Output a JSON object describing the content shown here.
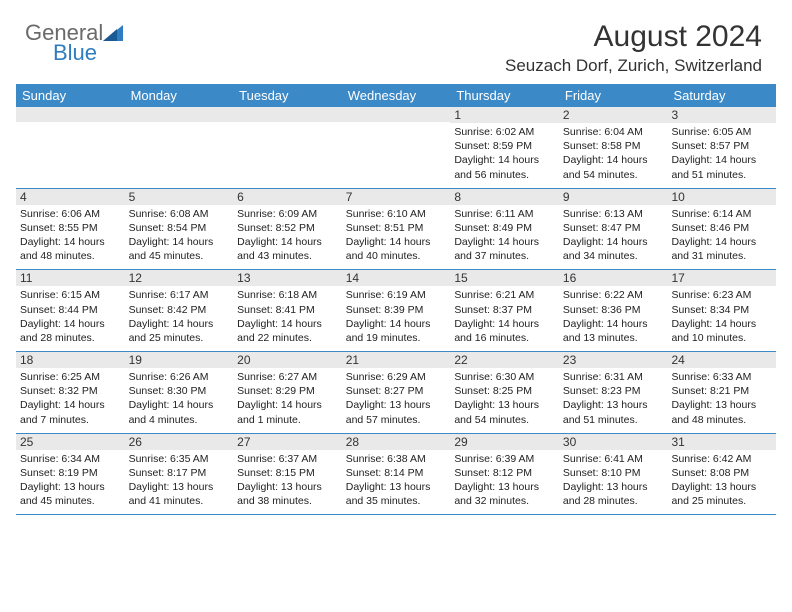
{
  "logo": {
    "word1": "General",
    "word2": "Blue"
  },
  "title": "August 2024",
  "location": "Seuzach Dorf, Zurich, Switzerland",
  "header_color": "#3b89c7",
  "grey_color": "#e9e9e9",
  "day_names": [
    "Sunday",
    "Monday",
    "Tuesday",
    "Wednesday",
    "Thursday",
    "Friday",
    "Saturday"
  ],
  "weeks": [
    [
      null,
      null,
      null,
      null,
      {
        "d": "1",
        "sr": "6:02 AM",
        "ss": "8:59 PM",
        "dl": "14 hours and 56 minutes."
      },
      {
        "d": "2",
        "sr": "6:04 AM",
        "ss": "8:58 PM",
        "dl": "14 hours and 54 minutes."
      },
      {
        "d": "3",
        "sr": "6:05 AM",
        "ss": "8:57 PM",
        "dl": "14 hours and 51 minutes."
      }
    ],
    [
      {
        "d": "4",
        "sr": "6:06 AM",
        "ss": "8:55 PM",
        "dl": "14 hours and 48 minutes."
      },
      {
        "d": "5",
        "sr": "6:08 AM",
        "ss": "8:54 PM",
        "dl": "14 hours and 45 minutes."
      },
      {
        "d": "6",
        "sr": "6:09 AM",
        "ss": "8:52 PM",
        "dl": "14 hours and 43 minutes."
      },
      {
        "d": "7",
        "sr": "6:10 AM",
        "ss": "8:51 PM",
        "dl": "14 hours and 40 minutes."
      },
      {
        "d": "8",
        "sr": "6:11 AM",
        "ss": "8:49 PM",
        "dl": "14 hours and 37 minutes."
      },
      {
        "d": "9",
        "sr": "6:13 AM",
        "ss": "8:47 PM",
        "dl": "14 hours and 34 minutes."
      },
      {
        "d": "10",
        "sr": "6:14 AM",
        "ss": "8:46 PM",
        "dl": "14 hours and 31 minutes."
      }
    ],
    [
      {
        "d": "11",
        "sr": "6:15 AM",
        "ss": "8:44 PM",
        "dl": "14 hours and 28 minutes."
      },
      {
        "d": "12",
        "sr": "6:17 AM",
        "ss": "8:42 PM",
        "dl": "14 hours and 25 minutes."
      },
      {
        "d": "13",
        "sr": "6:18 AM",
        "ss": "8:41 PM",
        "dl": "14 hours and 22 minutes."
      },
      {
        "d": "14",
        "sr": "6:19 AM",
        "ss": "8:39 PM",
        "dl": "14 hours and 19 minutes."
      },
      {
        "d": "15",
        "sr": "6:21 AM",
        "ss": "8:37 PM",
        "dl": "14 hours and 16 minutes."
      },
      {
        "d": "16",
        "sr": "6:22 AM",
        "ss": "8:36 PM",
        "dl": "14 hours and 13 minutes."
      },
      {
        "d": "17",
        "sr": "6:23 AM",
        "ss": "8:34 PM",
        "dl": "14 hours and 10 minutes."
      }
    ],
    [
      {
        "d": "18",
        "sr": "6:25 AM",
        "ss": "8:32 PM",
        "dl": "14 hours and 7 minutes."
      },
      {
        "d": "19",
        "sr": "6:26 AM",
        "ss": "8:30 PM",
        "dl": "14 hours and 4 minutes."
      },
      {
        "d": "20",
        "sr": "6:27 AM",
        "ss": "8:29 PM",
        "dl": "14 hours and 1 minute."
      },
      {
        "d": "21",
        "sr": "6:29 AM",
        "ss": "8:27 PM",
        "dl": "13 hours and 57 minutes."
      },
      {
        "d": "22",
        "sr": "6:30 AM",
        "ss": "8:25 PM",
        "dl": "13 hours and 54 minutes."
      },
      {
        "d": "23",
        "sr": "6:31 AM",
        "ss": "8:23 PM",
        "dl": "13 hours and 51 minutes."
      },
      {
        "d": "24",
        "sr": "6:33 AM",
        "ss": "8:21 PM",
        "dl": "13 hours and 48 minutes."
      }
    ],
    [
      {
        "d": "25",
        "sr": "6:34 AM",
        "ss": "8:19 PM",
        "dl": "13 hours and 45 minutes."
      },
      {
        "d": "26",
        "sr": "6:35 AM",
        "ss": "8:17 PM",
        "dl": "13 hours and 41 minutes."
      },
      {
        "d": "27",
        "sr": "6:37 AM",
        "ss": "8:15 PM",
        "dl": "13 hours and 38 minutes."
      },
      {
        "d": "28",
        "sr": "6:38 AM",
        "ss": "8:14 PM",
        "dl": "13 hours and 35 minutes."
      },
      {
        "d": "29",
        "sr": "6:39 AM",
        "ss": "8:12 PM",
        "dl": "13 hours and 32 minutes."
      },
      {
        "d": "30",
        "sr": "6:41 AM",
        "ss": "8:10 PM",
        "dl": "13 hours and 28 minutes."
      },
      {
        "d": "31",
        "sr": "6:42 AM",
        "ss": "8:08 PM",
        "dl": "13 hours and 25 minutes."
      }
    ]
  ],
  "labels": {
    "sunrise": "Sunrise:",
    "sunset": "Sunset:",
    "daylight": "Daylight:"
  }
}
